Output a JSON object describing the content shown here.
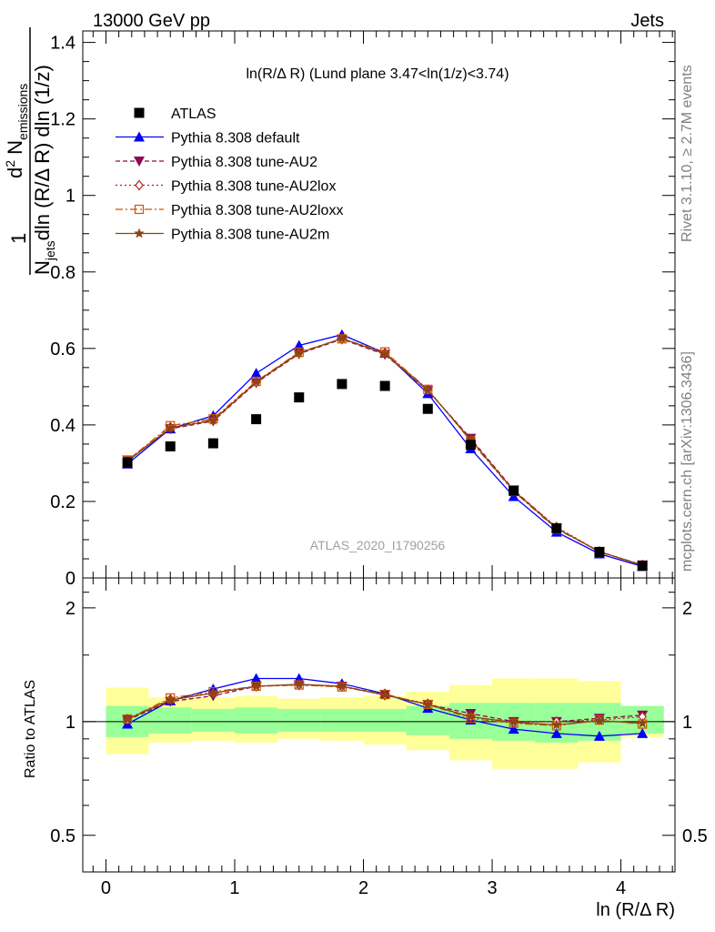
{
  "header": {
    "left": "13000 GeV pp",
    "right": "Jets"
  },
  "side_texts": {
    "rivet": "Rivet 3.1.10, ≥ 2.7M events",
    "mcplots": "mcplots.cern.ch [arXiv:1306.3436]"
  },
  "watermark": "ATLAS_2020_I1790256",
  "colors": {
    "atlas": "#000000",
    "default": "#0000ff",
    "au2": "#8b0a50",
    "au2lox": "#b22222",
    "au2loxx": "#cd5500",
    "au2m": "#8b4513",
    "band_inner": "#99ff99",
    "band_outer": "#ffff99"
  },
  "chart_data": [
    {
      "type": "line",
      "title": "ln(R/Δ R) (Lund plane 3.47<ln(1/z)<3.74)",
      "ylabel_parts": {
        "one": "1",
        "njets": "N",
        "njets_sub": "jets",
        "dln": "dln (R/Δ R) dln (1/z)",
        "d2": "d",
        "d2_sup": "2",
        "nem": "N",
        "nem_sub": "emissions"
      },
      "xlim": [
        -0.18,
        4.42
      ],
      "ylim": [
        0,
        1.43
      ],
      "yticks": [
        0,
        0.2,
        0.4,
        0.6,
        0.8,
        1,
        1.2,
        1.4
      ],
      "ytick_labels": [
        "0",
        "0.2",
        "0.4",
        "0.6",
        "0.8",
        "1",
        "1.2",
        "1.4"
      ],
      "x": [
        0.167,
        0.5,
        0.833,
        1.167,
        1.5,
        1.833,
        2.167,
        2.5,
        2.833,
        3.167,
        3.5,
        3.833,
        4.167
      ],
      "legend_position": "top-left",
      "series": [
        {
          "name": "ATLAS",
          "key": "atlas",
          "values": [
            0.302,
            0.344,
            0.352,
            0.415,
            0.472,
            0.507,
            0.502,
            0.442,
            0.348,
            0.228,
            0.13,
            0.068,
            0.032
          ]
        },
        {
          "name": "Pythia 8.308 default",
          "key": "default",
          "values": [
            0.298,
            0.39,
            0.424,
            0.535,
            0.608,
            0.636,
            0.588,
            0.482,
            0.338,
            0.213,
            0.12,
            0.063,
            0.03
          ]
        },
        {
          "name": "Pythia 8.308 tune-AU2",
          "key": "au2",
          "values": [
            0.308,
            0.39,
            0.41,
            0.51,
            0.586,
            0.624,
            0.584,
            0.49,
            0.365,
            0.23,
            0.131,
            0.068,
            0.034
          ]
        },
        {
          "name": "Pythia 8.308 tune-AU2lox",
          "key": "au2lox",
          "values": [
            0.306,
            0.394,
            0.413,
            0.512,
            0.589,
            0.626,
            0.588,
            0.492,
            0.36,
            0.228,
            0.133,
            0.069,
            0.034
          ]
        },
        {
          "name": "Pythia 8.308 tune-AU2loxx",
          "key": "au2loxx",
          "values": [
            0.307,
            0.398,
            0.416,
            0.514,
            0.59,
            0.625,
            0.591,
            0.493,
            0.358,
            0.226,
            0.128,
            0.069,
            0.032
          ]
        },
        {
          "name": "Pythia 8.308 tune-AU2m",
          "key": "au2m",
          "values": [
            0.305,
            0.392,
            0.412,
            0.512,
            0.588,
            0.626,
            0.586,
            0.491,
            0.362,
            0.228,
            0.13,
            0.069,
            0.033
          ]
        }
      ]
    },
    {
      "type": "line",
      "ylabel": "Ratio to ATLAS",
      "xlabel": "ln (R/Δ R)",
      "xlim": [
        -0.18,
        4.42
      ],
      "ylim": [
        0.4,
        2.4
      ],
      "xticks": [
        0,
        1,
        2,
        3,
        4
      ],
      "xtick_labels": [
        "0",
        "1",
        "2",
        "3",
        "4"
      ],
      "yticks": [
        0.5,
        1,
        2
      ],
      "ytick_labels": [
        "0.5",
        "1",
        "2"
      ],
      "x": [
        0.167,
        0.5,
        0.833,
        1.167,
        1.5,
        1.833,
        2.167,
        2.5,
        2.833,
        3.167,
        3.5,
        3.833,
        4.167
      ],
      "bin_edges": [
        0,
        0.333,
        0.667,
        1.0,
        1.333,
        1.667,
        2.0,
        2.333,
        2.667,
        3.0,
        3.333,
        3.667,
        4.0,
        4.333
      ],
      "band_inner": [
        [
          0.91,
          1.1
        ],
        [
          0.93,
          1.09
        ],
        [
          0.94,
          1.08
        ],
        [
          0.93,
          1.09
        ],
        [
          0.94,
          1.08
        ],
        [
          0.94,
          1.08
        ],
        [
          0.94,
          1.08
        ],
        [
          0.92,
          1.1
        ],
        [
          0.9,
          1.12
        ],
        [
          0.89,
          1.12
        ],
        [
          0.88,
          1.12
        ],
        [
          0.89,
          1.12
        ],
        [
          0.93,
          1.1
        ]
      ],
      "band_outer": [
        [
          0.82,
          1.23
        ],
        [
          0.88,
          1.16
        ],
        [
          0.89,
          1.16
        ],
        [
          0.88,
          1.17
        ],
        [
          0.9,
          1.15
        ],
        [
          0.89,
          1.16
        ],
        [
          0.87,
          1.17
        ],
        [
          0.84,
          1.2
        ],
        [
          0.79,
          1.25
        ],
        [
          0.75,
          1.3
        ],
        [
          0.75,
          1.3
        ],
        [
          0.78,
          1.28
        ],
        [
          0.91,
          1.1
        ]
      ],
      "series": [
        {
          "name": "Pythia 8.308 default",
          "key": "default",
          "values": [
            0.985,
            1.135,
            1.22,
            1.3,
            1.3,
            1.26,
            1.185,
            1.085,
            1.01,
            0.955,
            0.93,
            0.915,
            0.93
          ]
        },
        {
          "name": "Pythia 8.308 tune-AU2",
          "key": "au2",
          "values": [
            1.01,
            1.13,
            1.17,
            1.24,
            1.25,
            1.24,
            1.18,
            1.11,
            1.05,
            1.0,
            1.0,
            1.02,
            1.04
          ]
        },
        {
          "name": "Pythia 8.308 tune-AU2lox",
          "key": "au2lox",
          "values": [
            1.015,
            1.145,
            1.19,
            1.24,
            1.255,
            1.24,
            1.175,
            1.115,
            1.03,
            0.995,
            1.0,
            1.01,
            1.03
          ]
        },
        {
          "name": "Pythia 8.308 tune-AU2loxx",
          "key": "au2loxx",
          "values": [
            1.015,
            1.155,
            1.2,
            1.24,
            1.25,
            1.235,
            1.18,
            1.11,
            1.02,
            0.99,
            0.975,
            1.01,
            0.985
          ]
        },
        {
          "name": "Pythia 8.308 tune-AU2m",
          "key": "au2m",
          "values": [
            1.015,
            1.14,
            1.19,
            1.24,
            1.255,
            1.24,
            1.175,
            1.11,
            1.03,
            0.995,
            0.98,
            1.005,
            0.99
          ]
        }
      ]
    }
  ]
}
